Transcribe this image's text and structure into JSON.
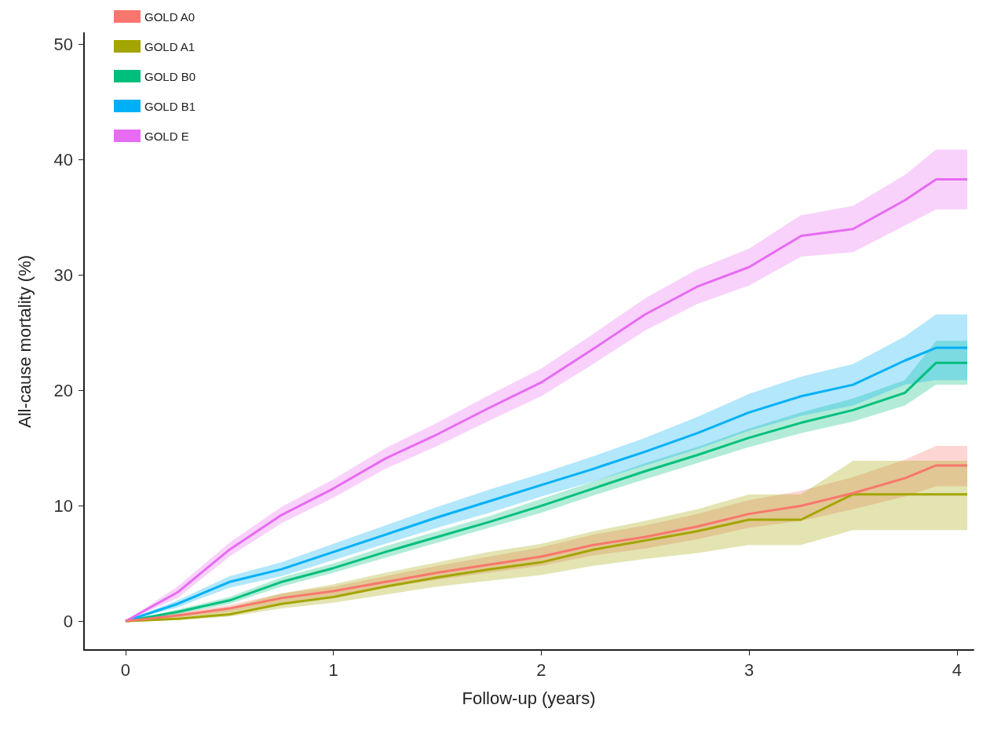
{
  "chart_data": {
    "type": "line",
    "xlabel": "Follow-up (years)",
    "ylabel": "All-cause mortality (%)",
    "x": [
      0,
      0.25,
      0.5,
      0.75,
      1,
      1.25,
      1.5,
      1.75,
      2,
      2.25,
      2.5,
      2.75,
      3,
      3.25,
      3.5,
      3.75,
      3.9,
      4.05
    ],
    "xlim": [
      -0.2,
      4.08
    ],
    "xticks": [
      0,
      1,
      2,
      3,
      4
    ],
    "ylim": [
      -2.5,
      51
    ],
    "yticks": [
      0,
      10,
      20,
      30,
      40,
      50
    ],
    "grid": false,
    "legend": "top left",
    "marker": "none",
    "line_style": "solid",
    "series": [
      {
        "name": "GOLD A0",
        "color": "#f8766d",
        "values": [
          0,
          0.5,
          1.1,
          2.0,
          2.6,
          3.4,
          4.2,
          4.9,
          5.6,
          6.6,
          7.3,
          8.2,
          9.3,
          10.0,
          11.1,
          12.4,
          13.5,
          13.5
        ],
        "lower": [
          0,
          0.3,
          0.8,
          1.6,
          2.2,
          2.9,
          3.6,
          4.2,
          4.8,
          5.7,
          6.3,
          7.1,
          8.1,
          8.7,
          9.7,
          10.8,
          11.7,
          11.7
        ],
        "upper": [
          0,
          0.7,
          1.4,
          2.4,
          3.0,
          3.9,
          4.8,
          5.6,
          6.4,
          7.5,
          8.3,
          9.3,
          10.5,
          11.3,
          12.5,
          14.0,
          15.2,
          15.2
        ]
      },
      {
        "name": "GOLD A1",
        "color": "#a3a500",
        "values": [
          0,
          0.2,
          0.6,
          1.5,
          2.1,
          3.0,
          3.8,
          4.5,
          5.1,
          6.2,
          7.0,
          7.8,
          8.8,
          8.8,
          11.0,
          11.0,
          11.0,
          11.0
        ],
        "lower": [
          0,
          0.1,
          0.4,
          1.1,
          1.6,
          2.3,
          3.0,
          3.5,
          4.0,
          4.8,
          5.4,
          5.9,
          6.6,
          6.6,
          7.9,
          7.9,
          7.9,
          7.9
        ],
        "upper": [
          0,
          0.5,
          1.2,
          2.4,
          3.2,
          4.2,
          5.1,
          6.0,
          6.7,
          7.8,
          8.7,
          9.7,
          11.0,
          11.0,
          13.9,
          13.9,
          13.9,
          13.9
        ]
      },
      {
        "name": "GOLD B0",
        "color": "#00bf7d",
        "values": [
          0,
          0.8,
          1.8,
          3.4,
          4.6,
          6.0,
          7.3,
          8.6,
          10.0,
          11.5,
          13.0,
          14.4,
          15.9,
          17.2,
          18.3,
          19.8,
          22.4,
          22.4
        ],
        "lower": [
          0,
          0.6,
          1.5,
          3.0,
          4.2,
          5.5,
          6.8,
          8.1,
          9.4,
          10.9,
          12.3,
          13.7,
          15.1,
          16.3,
          17.3,
          18.7,
          20.5,
          20.5
        ],
        "upper": [
          0,
          1.0,
          2.1,
          3.8,
          5.0,
          6.5,
          7.8,
          9.1,
          10.6,
          12.1,
          13.7,
          15.1,
          16.7,
          18.1,
          19.3,
          20.9,
          24.3,
          24.3
        ]
      },
      {
        "name": "GOLD B1",
        "color": "#00b0f6",
        "values": [
          0,
          1.5,
          3.4,
          4.5,
          6.0,
          7.5,
          9.0,
          10.4,
          11.8,
          13.2,
          14.7,
          16.3,
          18.1,
          19.5,
          20.5,
          22.6,
          23.7,
          23.7
        ],
        "lower": [
          0,
          1.2,
          2.9,
          3.9,
          5.3,
          6.7,
          8.1,
          9.4,
          10.8,
          12.1,
          13.5,
          14.9,
          16.5,
          17.8,
          18.7,
          20.5,
          20.9,
          20.9
        ],
        "upper": [
          0,
          1.8,
          3.9,
          5.1,
          6.7,
          8.3,
          9.9,
          11.4,
          12.8,
          14.3,
          15.9,
          17.7,
          19.7,
          21.2,
          22.3,
          24.7,
          26.6,
          26.6
        ]
      },
      {
        "name": "GOLD E",
        "color": "#e76bf3",
        "values": [
          0,
          2.5,
          6.2,
          9.2,
          11.5,
          14.1,
          16.2,
          18.5,
          20.7,
          23.6,
          26.6,
          29.0,
          30.7,
          33.4,
          34.0,
          36.5,
          38.3,
          38.3
        ],
        "lower": [
          0,
          2.0,
          5.6,
          8.5,
          10.7,
          13.2,
          15.2,
          17.4,
          19.5,
          22.3,
          25.2,
          27.5,
          29.1,
          31.6,
          32.0,
          34.3,
          35.7,
          35.7
        ],
        "upper": [
          0,
          3.0,
          6.8,
          9.9,
          12.3,
          15.0,
          17.2,
          19.6,
          21.9,
          24.9,
          28.0,
          30.5,
          32.3,
          35.2,
          36.0,
          38.7,
          40.9,
          40.9
        ]
      }
    ]
  }
}
